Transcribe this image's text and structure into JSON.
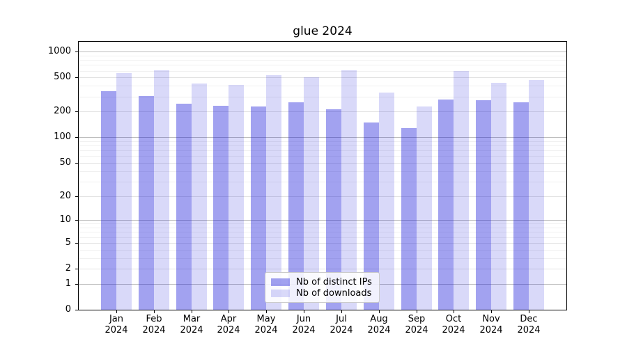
{
  "chart_data": {
    "type": "bar",
    "title": "glue 2024",
    "x_axis": {
      "months": [
        "Jan",
        "Feb",
        "Mar",
        "Apr",
        "May",
        "Jun",
        "Jul",
        "Aug",
        "Sep",
        "Oct",
        "Nov",
        "Dec"
      ],
      "year": "2024"
    },
    "y_axis": {
      "scale": "log1p",
      "ticks": [
        0,
        1,
        2,
        5,
        10,
        20,
        50,
        100,
        200,
        500,
        1000
      ],
      "ylim": [
        0,
        1300
      ],
      "grid": true
    },
    "legend": {
      "position": "lower center"
    },
    "series": [
      {
        "id": "distinct-ips",
        "name": "Nb of distinct IPs",
        "color": "#1616d9",
        "alpha": 0.4,
        "values": [
          345,
          304,
          247,
          232,
          231,
          258,
          213,
          149,
          128,
          275,
          270,
          258
        ]
      },
      {
        "id": "downloads",
        "name": "Nb of downloads",
        "color": "#1616d9",
        "alpha": 0.165,
        "values": [
          565,
          610,
          426,
          412,
          535,
          503,
          610,
          332,
          231,
          595,
          433,
          464
        ]
      }
    ]
  }
}
